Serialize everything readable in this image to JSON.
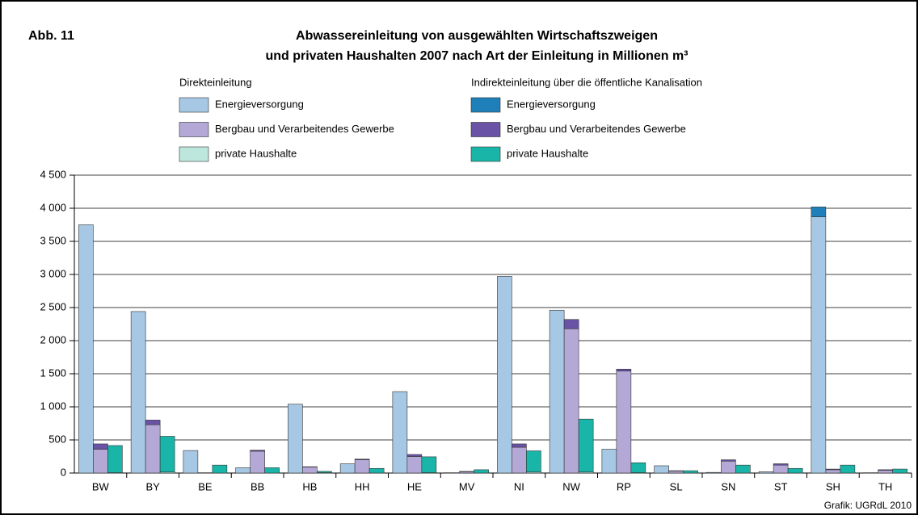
{
  "chart_data": {
    "type": "bar",
    "figure_label": "Abb. 11",
    "title": [
      "Abwassereinleitung von ausgewählten Wirtschaftszweigen",
      "und privaten Haushalten 2007 nach Art der Einleitung in Millionen m³"
    ],
    "legend_groups": [
      "Direkteinleitung",
      "Indirekteinleitung über die öffentliche Kanalisation"
    ],
    "source": "Grafik: UGRdL 2010",
    "categories": [
      "BW",
      "BY",
      "BE",
      "BB",
      "HB",
      "HH",
      "HE",
      "MV",
      "NI",
      "NW",
      "RP",
      "SL",
      "SN",
      "ST",
      "SH",
      "TH"
    ],
    "series": [
      {
        "name": "Energieversorgung",
        "color": "#a6c8e4",
        "values": [
          3750,
          2440,
          340,
          80,
          1040,
          140,
          1230,
          5,
          2970,
          2460,
          360,
          110,
          10,
          20,
          3870,
          5
        ]
      },
      {
        "name": "Bergbau und Verarbeitendes Gewerbe",
        "color": "#b4a8d6",
        "values": [
          360,
          730,
          5,
          330,
          90,
          200,
          250,
          20,
          390,
          2180,
          1540,
          30,
          180,
          120,
          50,
          40
        ]
      },
      {
        "name": "private Haushalte",
        "color": "#bde6dd",
        "values": [
          5,
          15,
          0,
          0,
          5,
          0,
          5,
          0,
          15,
          15,
          5,
          0,
          0,
          0,
          0,
          0
        ]
      },
      {
        "name": "Energieversorgung",
        "color": "#1f7fb8",
        "values": [
          0,
          0,
          0,
          0,
          0,
          0,
          0,
          0,
          0,
          0,
          0,
          0,
          0,
          0,
          150,
          0
        ]
      },
      {
        "name": "Bergbau und Verarbeitendes Gewerbe",
        "color": "#6a52a7",
        "values": [
          80,
          70,
          0,
          15,
          5,
          10,
          30,
          5,
          50,
          140,
          30,
          5,
          20,
          20,
          10,
          10
        ]
      },
      {
        "name": "private Haushalte",
        "color": "#19b5a8",
        "values": [
          410,
          540,
          120,
          80,
          20,
          70,
          240,
          50,
          320,
          800,
          150,
          35,
          120,
          70,
          120,
          60
        ]
      }
    ],
    "ylim": [
      0,
      4500
    ],
    "yticks": [
      0,
      500,
      {
        "value": 1000,
        "label": "1 000"
      },
      {
        "value": 1500,
        "label": "1 500"
      },
      {
        "value": 2000,
        "label": "2 000"
      },
      {
        "value": 2500,
        "label": "2 500"
      },
      {
        "value": 3000,
        "label": "3 000"
      },
      {
        "value": 3500,
        "label": "3 500"
      },
      {
        "value": 4000,
        "label": "4 000"
      },
      {
        "value": 4500,
        "label": "4 500"
      }
    ],
    "grid": true
  }
}
